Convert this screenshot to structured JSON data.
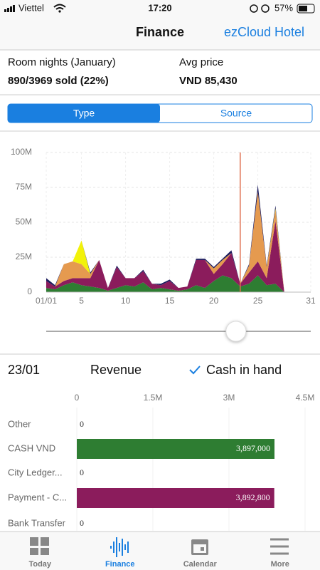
{
  "status": {
    "carrier": "Viettel",
    "time": "17:20",
    "battery": "57%"
  },
  "nav": {
    "title": "Finance",
    "action": "ezCloud Hotel"
  },
  "stats": [
    {
      "label": "Room nights (January)",
      "value": "890/3969 sold (22%)"
    },
    {
      "label": "Avg price",
      "value": "VND 85,430"
    }
  ],
  "segments": {
    "items": [
      "Type",
      "Source"
    ],
    "selected": 0
  },
  "chart_data": [
    {
      "type": "area",
      "stacked": true,
      "grid": true,
      "x": [
        1,
        2,
        3,
        4,
        5,
        6,
        7,
        8,
        9,
        10,
        11,
        12,
        13,
        14,
        15,
        16,
        17,
        18,
        19,
        20,
        21,
        22,
        23,
        24,
        25,
        26,
        27,
        28
      ],
      "series": [
        {
          "color": "#2e7d32",
          "values": [
            3000000,
            2000000,
            5000000,
            7000000,
            5000000,
            4000000,
            3000000,
            1000000,
            3000000,
            5000000,
            4000000,
            7000000,
            2000000,
            3000000,
            2000000,
            1000000,
            2000000,
            5000000,
            3000000,
            8000000,
            12000000,
            10000000,
            4000000,
            6000000,
            12000000,
            5000000,
            6000000,
            0
          ]
        },
        {
          "color": "#8b1c5c",
          "values": [
            5000000,
            2000000,
            3000000,
            3000000,
            5000000,
            6000000,
            20000000,
            2000000,
            15000000,
            5000000,
            6000000,
            8000000,
            4000000,
            2000000,
            6000000,
            2000000,
            2000000,
            18000000,
            20000000,
            5000000,
            8000000,
            18000000,
            2000000,
            8000000,
            10000000,
            5000000,
            45000000,
            0
          ]
        },
        {
          "color": "#e59a4f",
          "values": [
            0,
            0,
            12000000,
            12000000,
            10000000,
            3000000,
            0,
            0,
            0,
            0,
            0,
            0,
            0,
            0,
            0,
            0,
            0,
            0,
            0,
            4000000,
            3000000,
            0,
            0,
            5000000,
            50000000,
            8000000,
            8000000,
            0
          ]
        },
        {
          "color": "#f2f20a",
          "values": [
            0,
            0,
            0,
            0,
            17000000,
            0,
            0,
            0,
            0,
            0,
            0,
            0,
            0,
            0,
            0,
            0,
            0,
            0,
            0,
            0,
            0,
            0,
            0,
            0,
            0,
            0,
            1000000,
            0
          ]
        },
        {
          "color": "#1c1c5e",
          "values": [
            2000000,
            1000000,
            0,
            0,
            0,
            1000000,
            0,
            0,
            1000000,
            0,
            0,
            1000000,
            0,
            1000000,
            1000000,
            0,
            0,
            1000000,
            1000000,
            1000000,
            1000000,
            2000000,
            0,
            1000000,
            5000000,
            1000000,
            2000000,
            0
          ]
        }
      ],
      "xlim": [
        1,
        31
      ],
      "xticks": [
        {
          "value": 1,
          "label": "01/01"
        },
        5,
        10,
        15,
        20,
        25,
        31
      ],
      "ylim": [
        0,
        100000000
      ],
      "yticks": [
        0,
        {
          "value": 25000000,
          "label": "25M"
        },
        {
          "value": 50000000,
          "label": "50M"
        },
        {
          "value": 75000000,
          "label": "75M"
        },
        {
          "value": 100000000,
          "label": "100M"
        }
      ],
      "marker_x": 23,
      "marker_color": "#e07050"
    },
    {
      "type": "hbar",
      "categories": [
        "Other",
        "CASH VND",
        "City Ledger...",
        "Payment - C...",
        "Bank Transfer"
      ],
      "values": [
        0,
        3897000,
        0,
        3892800,
        0
      ],
      "value_labels": [
        "0",
        "3,897,000",
        "0",
        "3,892,800",
        "0"
      ],
      "colors": [
        null,
        "#2e7d32",
        null,
        "#8b1c5c",
        null
      ],
      "xlim": [
        0,
        4500000
      ],
      "xticks": [
        0,
        {
          "value": 1500000,
          "label": "1.5M"
        },
        {
          "value": 3000000,
          "label": "3M"
        },
        {
          "value": 4500000,
          "label": "4.5M"
        }
      ],
      "grid": true
    }
  ],
  "detail": {
    "date": "23/01",
    "metric": "Revenue",
    "filter": "Cash in hand"
  },
  "tabs": {
    "items": [
      "Today",
      "Finance",
      "Calendar",
      "More"
    ],
    "selected": 1
  }
}
